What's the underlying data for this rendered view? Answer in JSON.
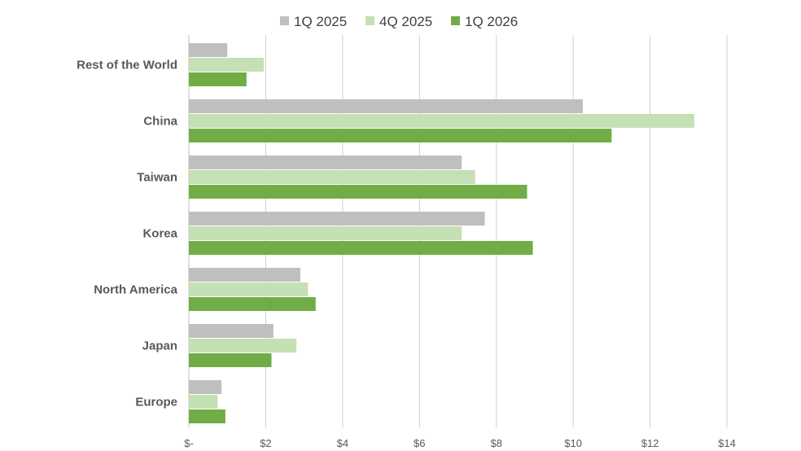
{
  "chart_data": {
    "type": "bar",
    "orientation": "horizontal",
    "categories": [
      "Rest of the World",
      "China",
      "Taiwan",
      "Korea",
      "North America",
      "Japan",
      "Europe"
    ],
    "series": [
      {
        "name": "1Q 2025",
        "color": "#bfbfbf",
        "values": [
          1.0,
          10.25,
          7.1,
          7.7,
          2.9,
          2.2,
          0.85
        ]
      },
      {
        "name": "4Q 2025",
        "color": "#c5e0b4",
        "values": [
          1.95,
          13.15,
          7.45,
          7.1,
          3.1,
          2.8,
          0.75
        ]
      },
      {
        "name": "1Q 2026",
        "color": "#70ad47",
        "values": [
          1.5,
          11.0,
          8.8,
          8.95,
          3.3,
          2.15,
          0.95
        ]
      }
    ],
    "xlim": [
      0,
      14
    ],
    "xticks": [
      0,
      2,
      4,
      6,
      8,
      10,
      12,
      14
    ],
    "xtick_labels": [
      "$-",
      "$2",
      "$4",
      "$6",
      "$8",
      "$10",
      "$12",
      "$14"
    ],
    "grid": true,
    "legend_position": "top",
    "title": "",
    "xlabel": "",
    "ylabel": ""
  }
}
